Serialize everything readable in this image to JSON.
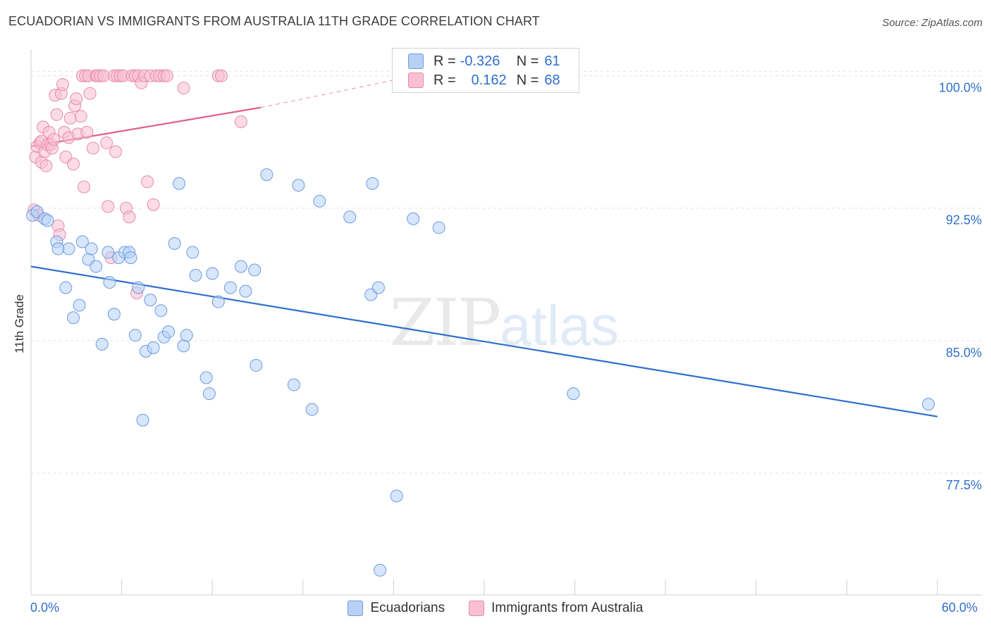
{
  "title": "ECUADORIAN VS IMMIGRANTS FROM AUSTRALIA 11TH GRADE CORRELATION CHART",
  "source": "Source: ZipAtlas.com",
  "watermark": {
    "zip": "ZIP",
    "atlas": "atlas"
  },
  "legend": {
    "rows": [
      {
        "r_label": "R =",
        "r_value": "-0.326",
        "n_label": "N =",
        "n_value": "61"
      },
      {
        "r_label": "R =",
        "r_value": "0.162",
        "n_label": "N =",
        "n_value": "68"
      }
    ]
  },
  "chart_data": {
    "type": "scatter",
    "title": "ECUADORIAN VS IMMIGRANTS FROM AUSTRALIA 11TH GRADE CORRELATION CHART",
    "xlabel": "",
    "ylabel": "11th Grade",
    "xlim": [
      0,
      60
    ],
    "ylim": [
      70.6,
      101.5
    ],
    "x_tick_labels": [
      "0.0%",
      "60.0%"
    ],
    "y_ticks": [
      77.5,
      85.0,
      92.5,
      100.0
    ],
    "y_tick_labels": [
      "77.5%",
      "85.0%",
      "92.5%",
      "100.0%"
    ],
    "grid": true,
    "colors": {
      "ecuadorians_fill": "#b7d1f5",
      "ecuadorians_stroke": "#6a9be0",
      "ecuadorians_line": "#2f6fce",
      "australia_fill": "#f8c0d2",
      "australia_stroke": "#e88aab",
      "australia_line": "#e0608c",
      "axis_label": "#2f6fce"
    },
    "series": [
      {
        "name": "Ecuadorians",
        "r": -0.326,
        "n": 61,
        "trend": {
          "x0": 0,
          "y0": 89.2,
          "x1": 60,
          "y1": 80.7
        },
        "points": [
          [
            0.1,
            92.1
          ],
          [
            0.4,
            92.3
          ],
          [
            0.9,
            91.9
          ],
          [
            1.1,
            91.8
          ],
          [
            1.7,
            90.6
          ],
          [
            1.8,
            90.2
          ],
          [
            2.3,
            88.0
          ],
          [
            2.5,
            90.2
          ],
          [
            2.8,
            86.3
          ],
          [
            3.2,
            87.0
          ],
          [
            3.4,
            90.6
          ],
          [
            3.8,
            89.6
          ],
          [
            4.0,
            90.2
          ],
          [
            4.3,
            89.2
          ],
          [
            4.7,
            84.8
          ],
          [
            5.1,
            90.0
          ],
          [
            5.2,
            88.3
          ],
          [
            5.5,
            86.5
          ],
          [
            5.8,
            89.7
          ],
          [
            6.2,
            90.0
          ],
          [
            6.5,
            90.0
          ],
          [
            6.6,
            89.7
          ],
          [
            6.9,
            85.3
          ],
          [
            7.1,
            88.0
          ],
          [
            7.4,
            80.5
          ],
          [
            7.6,
            84.4
          ],
          [
            7.9,
            87.3
          ],
          [
            8.1,
            84.6
          ],
          [
            8.6,
            86.7
          ],
          [
            8.8,
            85.2
          ],
          [
            9.1,
            85.5
          ],
          [
            9.5,
            90.5
          ],
          [
            9.8,
            93.9
          ],
          [
            10.1,
            84.7
          ],
          [
            10.3,
            85.3
          ],
          [
            10.7,
            90.0
          ],
          [
            10.9,
            88.7
          ],
          [
            11.6,
            82.9
          ],
          [
            11.8,
            82.0
          ],
          [
            12.0,
            88.8
          ],
          [
            12.4,
            87.2
          ],
          [
            13.2,
            88.0
          ],
          [
            13.9,
            89.2
          ],
          [
            14.2,
            87.8
          ],
          [
            14.8,
            89.0
          ],
          [
            14.9,
            83.6
          ],
          [
            15.6,
            94.4
          ],
          [
            17.4,
            82.5
          ],
          [
            17.7,
            93.8
          ],
          [
            18.6,
            81.1
          ],
          [
            19.1,
            92.9
          ],
          [
            21.1,
            92.0
          ],
          [
            22.5,
            87.6
          ],
          [
            22.6,
            93.9
          ],
          [
            23.0,
            88.0
          ],
          [
            23.1,
            72.0
          ],
          [
            24.2,
            76.2
          ],
          [
            25.3,
            91.9
          ],
          [
            27.0,
            91.4
          ],
          [
            35.9,
            82.0
          ],
          [
            59.4,
            81.4
          ]
        ]
      },
      {
        "name": "Immigrants from Australia",
        "r": 0.162,
        "n": 68,
        "trend": {
          "x0": 0,
          "y0": 96.0,
          "x1": 15.2,
          "y1": 98.2,
          "dash_x1": 24.3,
          "dash_y1": 99.8
        },
        "points": [
          [
            0.2,
            92.4
          ],
          [
            0.3,
            95.4
          ],
          [
            0.4,
            96.0
          ],
          [
            0.5,
            92.1
          ],
          [
            0.6,
            96.2
          ],
          [
            0.7,
            95.1
          ],
          [
            0.7,
            96.3
          ],
          [
            0.8,
            97.1
          ],
          [
            0.9,
            95.7
          ],
          [
            1.0,
            94.9
          ],
          [
            1.1,
            96.1
          ],
          [
            1.2,
            96.8
          ],
          [
            1.3,
            96.1
          ],
          [
            1.4,
            95.9
          ],
          [
            1.5,
            96.4
          ],
          [
            1.6,
            98.9
          ],
          [
            1.7,
            97.8
          ],
          [
            1.8,
            91.5
          ],
          [
            1.9,
            91.0
          ],
          [
            2.0,
            99.0
          ],
          [
            2.1,
            99.5
          ],
          [
            2.2,
            96.8
          ],
          [
            2.3,
            95.4
          ],
          [
            2.5,
            96.5
          ],
          [
            2.6,
            97.6
          ],
          [
            2.8,
            95.0
          ],
          [
            2.9,
            98.3
          ],
          [
            3.0,
            98.7
          ],
          [
            3.1,
            96.7
          ],
          [
            3.3,
            97.7
          ],
          [
            3.4,
            100.0
          ],
          [
            3.5,
            93.7
          ],
          [
            3.6,
            100.0
          ],
          [
            3.7,
            96.8
          ],
          [
            3.8,
            100.0
          ],
          [
            3.9,
            99.0
          ],
          [
            4.1,
            95.9
          ],
          [
            4.3,
            100.0
          ],
          [
            4.4,
            100.0
          ],
          [
            4.6,
            100.0
          ],
          [
            4.8,
            100.0
          ],
          [
            5.0,
            96.2
          ],
          [
            5.1,
            92.6
          ],
          [
            5.3,
            89.7
          ],
          [
            5.5,
            100.0
          ],
          [
            5.6,
            95.7
          ],
          [
            5.7,
            100.0
          ],
          [
            5.9,
            100.0
          ],
          [
            6.1,
            100.0
          ],
          [
            6.3,
            92.5
          ],
          [
            6.5,
            92.0
          ],
          [
            6.7,
            100.0
          ],
          [
            6.9,
            100.0
          ],
          [
            7.0,
            87.7
          ],
          [
            7.1,
            100.0
          ],
          [
            7.3,
            99.6
          ],
          [
            7.5,
            100.0
          ],
          [
            7.7,
            94.0
          ],
          [
            7.9,
            100.0
          ],
          [
            8.1,
            92.7
          ],
          [
            8.3,
            100.0
          ],
          [
            8.5,
            100.0
          ],
          [
            8.8,
            100.0
          ],
          [
            9.0,
            100.0
          ],
          [
            10.1,
            99.3
          ],
          [
            12.4,
            100.0
          ],
          [
            12.6,
            100.0
          ],
          [
            13.9,
            97.4
          ]
        ]
      }
    ]
  },
  "bottom_legend": {
    "items": [
      "Ecuadorians",
      "Immigrants from Australia"
    ]
  }
}
